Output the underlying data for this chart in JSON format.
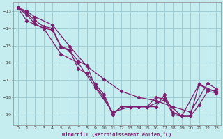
{
  "xlabel": "Windchill (Refroidissement éolien,°C)",
  "bg_color": "#c5ecee",
  "grid_color": "#9fcdd4",
  "line_color": "#7b1f6e",
  "xlim": [
    -0.5,
    23.5
  ],
  "ylim": [
    -19.6,
    -12.5
  ],
  "yticks": [
    -13,
    -14,
    -15,
    -16,
    -17,
    -18,
    -19
  ],
  "xticks": [
    0,
    1,
    2,
    3,
    4,
    5,
    6,
    7,
    8,
    9,
    10,
    11,
    12,
    13,
    14,
    15,
    16,
    17,
    18,
    19,
    20,
    21,
    22,
    23
  ],
  "series1": [
    [
      0,
      -12.8
    ],
    [
      1,
      -13.1
    ],
    [
      2,
      -13.55
    ],
    [
      3,
      -13.9
    ],
    [
      4,
      -14.0
    ],
    [
      5,
      -15.05
    ],
    [
      6,
      -15.25
    ],
    [
      7,
      -16.35
    ],
    [
      8,
      -16.6
    ],
    [
      9,
      -17.25
    ],
    [
      10,
      -17.85
    ],
    [
      11,
      -18.95
    ],
    [
      12,
      -18.55
    ],
    [
      13,
      -18.55
    ],
    [
      14,
      -18.55
    ],
    [
      15,
      -18.55
    ],
    [
      16,
      -18.55
    ],
    [
      17,
      -17.85
    ],
    [
      18,
      -18.9
    ],
    [
      19,
      -19.05
    ],
    [
      20,
      -19.05
    ],
    [
      21,
      -17.25
    ],
    [
      22,
      -17.55
    ],
    [
      23,
      -17.65
    ]
  ],
  "series2": [
    [
      0,
      -12.8
    ],
    [
      1,
      -13.2
    ],
    [
      2,
      -13.75
    ],
    [
      3,
      -14.0
    ],
    [
      4,
      -14.1
    ],
    [
      5,
      -15.1
    ],
    [
      6,
      -15.3
    ],
    [
      7,
      -15.9
    ],
    [
      8,
      -16.15
    ],
    [
      9,
      -17.4
    ],
    [
      10,
      -18.0
    ],
    [
      11,
      -19.0
    ],
    [
      12,
      -18.55
    ],
    [
      13,
      -18.55
    ],
    [
      14,
      -18.55
    ],
    [
      15,
      -18.55
    ],
    [
      16,
      -18.0
    ],
    [
      17,
      -18.1
    ],
    [
      18,
      -19.0
    ],
    [
      19,
      -19.1
    ],
    [
      20,
      -19.1
    ],
    [
      21,
      -18.45
    ],
    [
      22,
      -17.65
    ],
    [
      23,
      -17.75
    ]
  ],
  "series3": [
    [
      0,
      -12.8
    ],
    [
      1,
      -13.55
    ],
    [
      3,
      -14.0
    ],
    [
      5,
      -15.5
    ],
    [
      7,
      -16.0
    ],
    [
      9,
      -17.45
    ],
    [
      11,
      -18.85
    ],
    [
      13,
      -18.55
    ],
    [
      15,
      -18.55
    ],
    [
      17,
      -18.15
    ],
    [
      19,
      -19.1
    ],
    [
      21,
      -17.25
    ],
    [
      23,
      -17.7
    ]
  ],
  "series4": [
    [
      0,
      -12.8
    ],
    [
      1,
      -13.0
    ],
    [
      2,
      -13.35
    ],
    [
      4,
      -13.8
    ],
    [
      6,
      -15.05
    ],
    [
      8,
      -16.2
    ],
    [
      10,
      -16.95
    ],
    [
      12,
      -17.65
    ],
    [
      14,
      -18.0
    ],
    [
      16,
      -18.2
    ],
    [
      18,
      -18.55
    ],
    [
      20,
      -18.85
    ],
    [
      22,
      -17.2
    ],
    [
      23,
      -17.5
    ]
  ]
}
